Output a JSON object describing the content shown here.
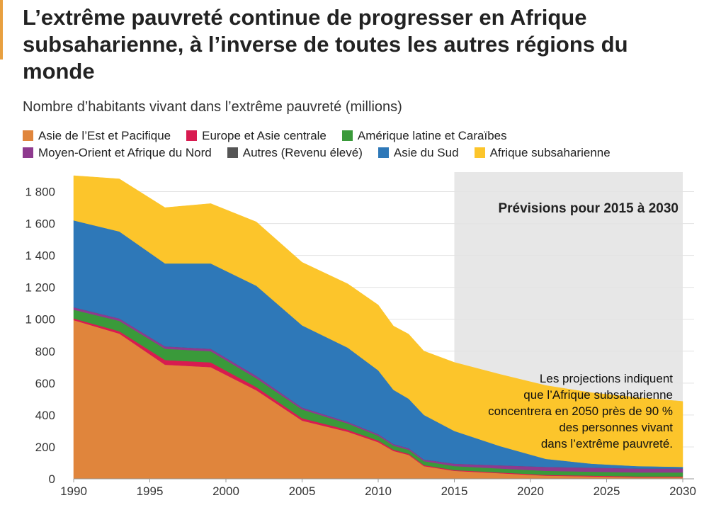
{
  "page": {
    "accent_color": "#e8a040"
  },
  "chart_data": {
    "type": "area",
    "stacked": true,
    "title": "L’extrême pauvreté continue de progresser en Afrique subsaharienne, à l’inverse de toutes les autres régions du monde",
    "subtitle": "Nombre d’habitants vivant dans l’extrême pauvreté (millions)",
    "xlabel": "",
    "ylabel": "",
    "xlim": [
      1990,
      2030
    ],
    "ylim": [
      0,
      1900
    ],
    "x_ticks": [
      1990,
      1995,
      2000,
      2005,
      2010,
      2015,
      2020,
      2025,
      2030
    ],
    "y_ticks": [
      0,
      200,
      400,
      600,
      800,
      1000,
      1200,
      1400,
      1600,
      1800
    ],
    "y_tick_labels": [
      "0",
      "200",
      "400",
      "600",
      "800",
      "1 000",
      "1 200",
      "1 400",
      "1 600",
      "1 800"
    ],
    "grid": true,
    "legend_position": "top",
    "x": [
      1990,
      1993,
      1996,
      1999,
      2002,
      2005,
      2008,
      2010,
      2011,
      2012,
      2013,
      2015,
      2018,
      2021,
      2024,
      2027,
      2030
    ],
    "series": [
      {
        "name": "Asie de l’Est et Pacifique",
        "color": "#e0853c",
        "values": [
          995,
          910,
          715,
          700,
          555,
          365,
          295,
          230,
          175,
          150,
          80,
          50,
          35,
          20,
          15,
          10,
          10
        ]
      },
      {
        "name": "Europe et Asie centrale",
        "color": "#d81b50",
        "values": [
          10,
          15,
          30,
          30,
          20,
          15,
          12,
          10,
          8,
          7,
          6,
          5,
          5,
          5,
          5,
          5,
          5
        ]
      },
      {
        "name": "Amérique latine et Caraïbes",
        "color": "#3a9a3a",
        "values": [
          55,
          65,
          70,
          70,
          55,
          55,
          40,
          30,
          25,
          25,
          25,
          25,
          25,
          25,
          25,
          25,
          25
        ]
      },
      {
        "name": "Moyen-Orient et Afrique du Nord",
        "color": "#8e3a8e",
        "values": [
          15,
          15,
          15,
          15,
          15,
          12,
          10,
          10,
          10,
          10,
          10,
          15,
          20,
          25,
          25,
          25,
          25
        ]
      },
      {
        "name": "Autres (Revenu élevé)",
        "color": "#555555",
        "values": [
          0,
          0,
          0,
          0,
          0,
          0,
          0,
          0,
          0,
          0,
          0,
          0,
          0,
          0,
          0,
          0,
          0
        ]
      },
      {
        "name": "Asie du Sud",
        "color": "#2e78b8",
        "values": [
          545,
          545,
          520,
          535,
          565,
          515,
          465,
          400,
          340,
          310,
          280,
          205,
          120,
          50,
          25,
          15,
          10
        ]
      },
      {
        "name": "Afrique subsaharienne",
        "color": "#fcc52b",
        "values": [
          280,
          330,
          350,
          375,
          400,
          395,
          400,
          410,
          400,
          405,
          400,
          430,
          450,
          460,
          445,
          430,
          410
        ]
      }
    ],
    "forecast_band": {
      "from": 2015,
      "to": 2030,
      "label": "Prévisions pour 2015 à 2030",
      "color": "#e7e7e7"
    },
    "annotation": {
      "lines": [
        "Les projections indiquent",
        "que l’Afrique subsaharienne",
        "concentrera en 2050 près de 90 %",
        "des personnes vivant",
        "dans l’extrême pauvreté."
      ]
    },
    "gridline_color": "#e3e3e3",
    "axis_color": "#999999"
  }
}
